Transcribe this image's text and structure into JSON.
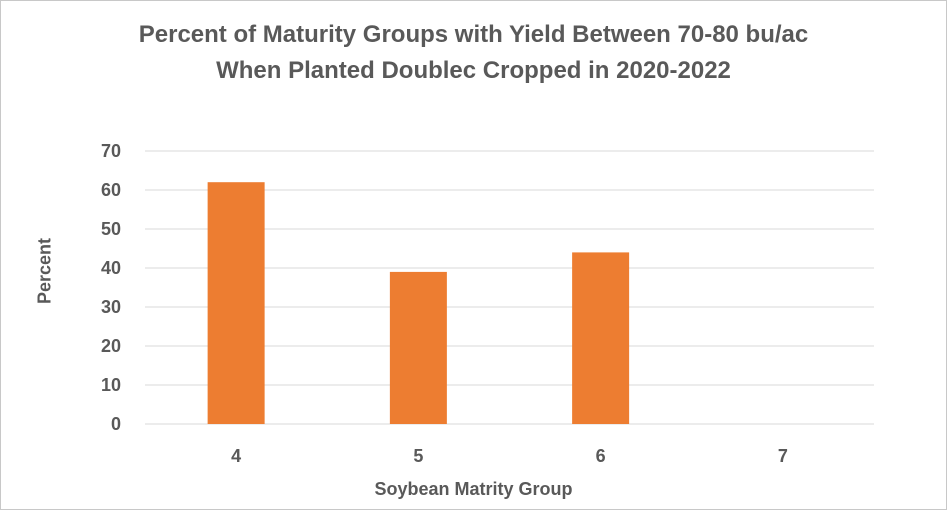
{
  "chart_data": {
    "type": "bar",
    "title_line1": "Percent of Maturity Groups with Yield Between 70-80 bu/ac",
    "title_line2": "When Planted Doublec Cropped in 2020-2022",
    "xlabel": "Soybean Matrity Group",
    "ylabel": "Percent",
    "categories": [
      "4",
      "5",
      "6",
      "7"
    ],
    "values": [
      62,
      39,
      44,
      0
    ],
    "ylim": [
      0,
      70
    ],
    "yticks": [
      0,
      10,
      20,
      30,
      40,
      50,
      60,
      70
    ],
    "grid": true,
    "bar_color": "#ED7D31",
    "grid_color": "#D9D9D9"
  }
}
